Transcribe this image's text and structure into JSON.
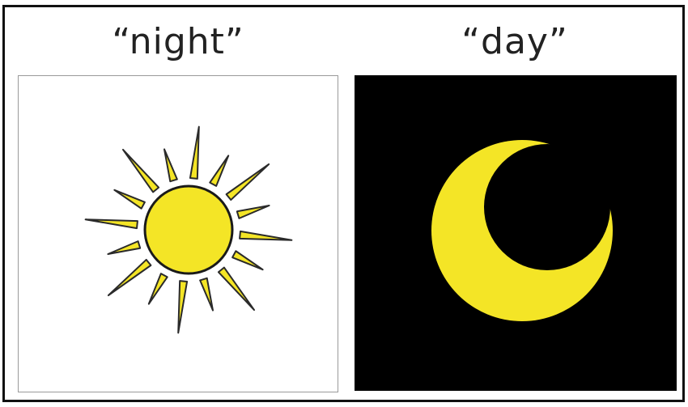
{
  "labels": {
    "left": "“night”",
    "right": "“day”"
  },
  "icons": {
    "left": "sun-icon",
    "right": "crescent-moon-icon"
  },
  "colors": {
    "icon_fill": "#f4e526",
    "left_background": "#ffffff",
    "right_background": "#000000",
    "outline": "#1a1a1a"
  }
}
